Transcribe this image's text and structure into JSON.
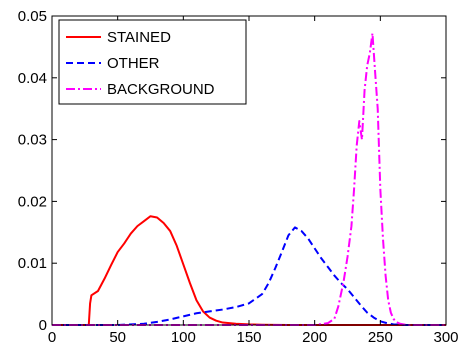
{
  "chart_data": {
    "type": "line",
    "title": "",
    "xlabel": "",
    "ylabel": "",
    "xlim": [
      0,
      300
    ],
    "ylim": [
      0,
      0.05
    ],
    "x_ticks": [
      0,
      50,
      100,
      150,
      200,
      250,
      300
    ],
    "y_ticks": [
      0,
      0.01,
      0.02,
      0.03,
      0.04,
      0.05
    ],
    "x_tick_labels": [
      "0",
      "50",
      "100",
      "150",
      "200",
      "250",
      "300"
    ],
    "y_tick_labels": [
      "0",
      "0.01",
      "0.02",
      "0.03",
      "0.04",
      "0.05"
    ],
    "grid": false,
    "legend_position": "top-left",
    "series": [
      {
        "name": "STAINED",
        "color": "#ff0000",
        "style": "solid",
        "x": [
          0,
          28,
          29,
          30,
          35,
          40,
          45,
          50,
          55,
          60,
          65,
          70,
          75,
          80,
          85,
          90,
          95,
          100,
          105,
          110,
          115,
          120,
          125,
          130,
          140,
          150,
          160,
          180,
          200,
          250,
          300
        ],
        "y": [
          0,
          0,
          0.0035,
          0.0048,
          0.0055,
          0.0075,
          0.0097,
          0.0118,
          0.0132,
          0.0148,
          0.016,
          0.0168,
          0.0176,
          0.0174,
          0.0165,
          0.0152,
          0.0128,
          0.0098,
          0.0068,
          0.004,
          0.0022,
          0.0012,
          0.0007,
          0.0004,
          0.0002,
          0.0001,
          5e-05,
          0,
          0,
          0,
          0
        ]
      },
      {
        "name": "OTHER",
        "color": "#0000ff",
        "style": "dashed",
        "x": [
          0,
          50,
          70,
          80,
          90,
          100,
          110,
          120,
          130,
          140,
          150,
          160,
          165,
          170,
          175,
          180,
          185,
          190,
          195,
          200,
          205,
          210,
          215,
          220,
          225,
          230,
          235,
          240,
          245,
          250,
          255,
          260,
          270,
          280,
          300
        ],
        "y": [
          0,
          0,
          0.0002,
          0.0005,
          0.0009,
          0.0014,
          0.0019,
          0.0022,
          0.0025,
          0.0029,
          0.0035,
          0.005,
          0.0068,
          0.0092,
          0.0118,
          0.0145,
          0.0158,
          0.0152,
          0.014,
          0.0124,
          0.0108,
          0.0094,
          0.008,
          0.0068,
          0.0058,
          0.0045,
          0.0032,
          0.002,
          0.0012,
          0.0006,
          0.0003,
          0.0001,
          0,
          0,
          0
        ]
      },
      {
        "name": "BACKGROUND",
        "color": "#ff00ff",
        "style": "dashdot",
        "x": [
          0,
          200,
          210,
          215,
          218,
          222,
          225,
          228,
          230,
          232,
          234,
          236,
          238,
          240,
          242,
          244,
          246,
          248,
          250,
          252,
          254,
          256,
          258,
          260,
          262,
          265,
          270,
          300
        ],
        "y": [
          0,
          0,
          0.0003,
          0.001,
          0.003,
          0.007,
          0.011,
          0.016,
          0.022,
          0.029,
          0.033,
          0.03,
          0.038,
          0.042,
          0.044,
          0.0472,
          0.041,
          0.035,
          0.022,
          0.014,
          0.008,
          0.004,
          0.002,
          0.001,
          0.0005,
          0.0002,
          0,
          0
        ]
      }
    ]
  }
}
